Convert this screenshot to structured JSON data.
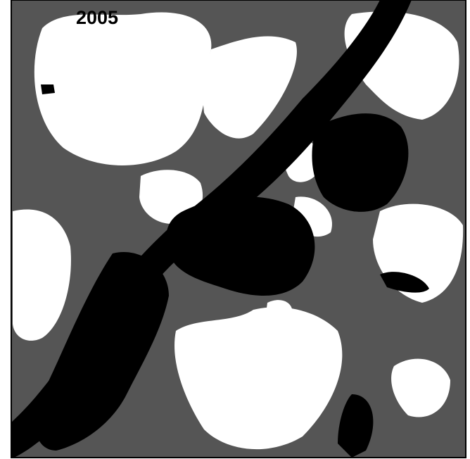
{
  "map": {
    "label": "2005"
  }
}
